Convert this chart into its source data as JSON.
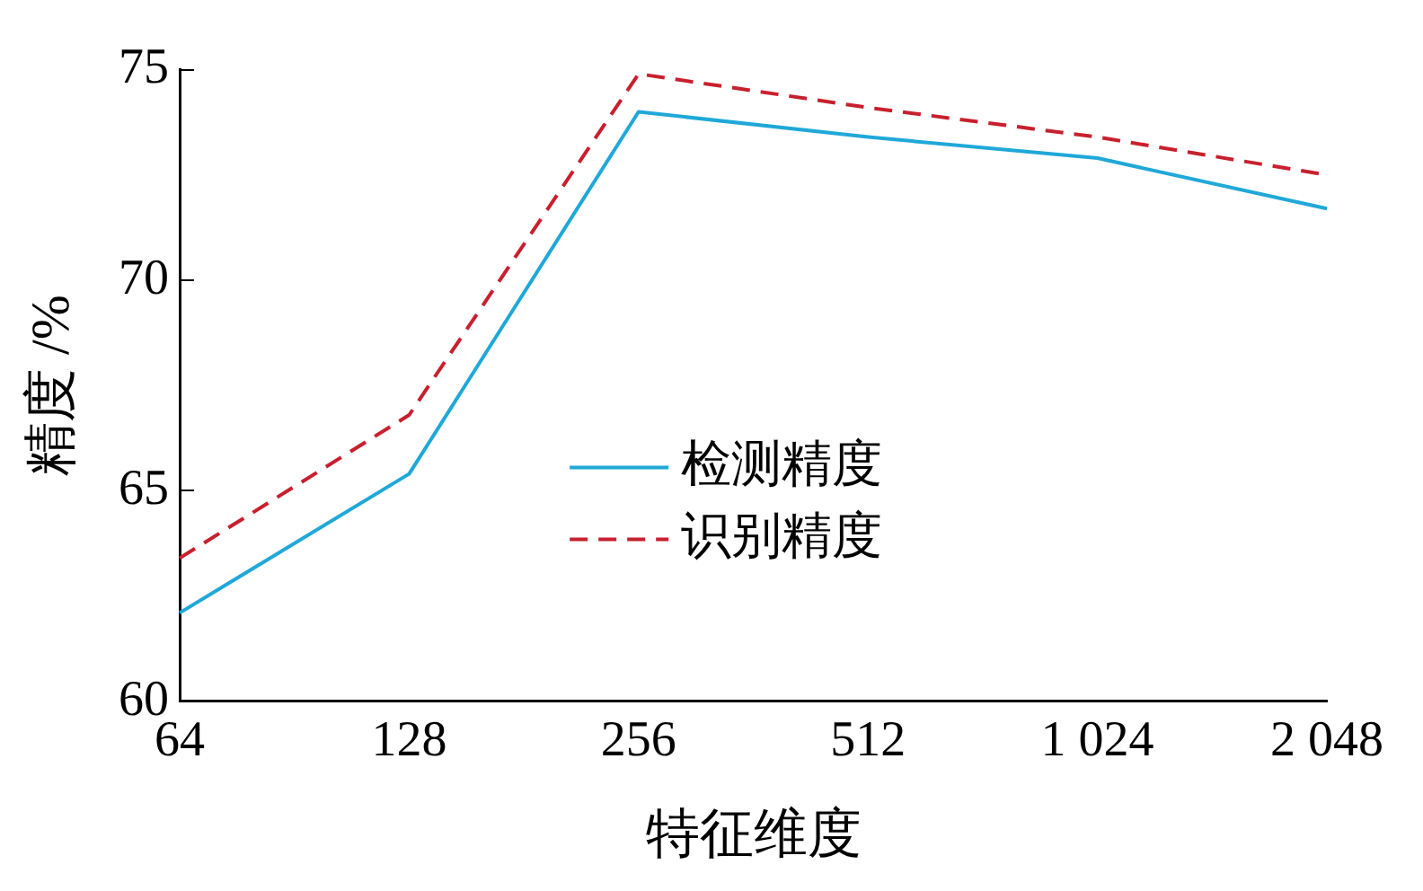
{
  "chart_data": {
    "type": "line",
    "xlabel": "特征维度",
    "ylabel": "精度 /%",
    "categories": [
      "64",
      "128",
      "256",
      "512",
      "1 024",
      "2 048"
    ],
    "series": [
      {
        "name": "检测精度",
        "color": "#1fa8d8",
        "line_style": "solid",
        "values": [
          62.1,
          65.4,
          74.0,
          73.4,
          72.9,
          71.7
        ]
      },
      {
        "name": "识别精度",
        "color": "#c8202e",
        "line_style": "dashed",
        "values": [
          63.4,
          66.8,
          74.9,
          74.1,
          73.4,
          72.5
        ]
      }
    ],
    "ylim": [
      60,
      75
    ],
    "yticks": [
      60,
      65,
      70,
      75
    ],
    "grid": false,
    "legend": "center",
    "marker": "none"
  }
}
